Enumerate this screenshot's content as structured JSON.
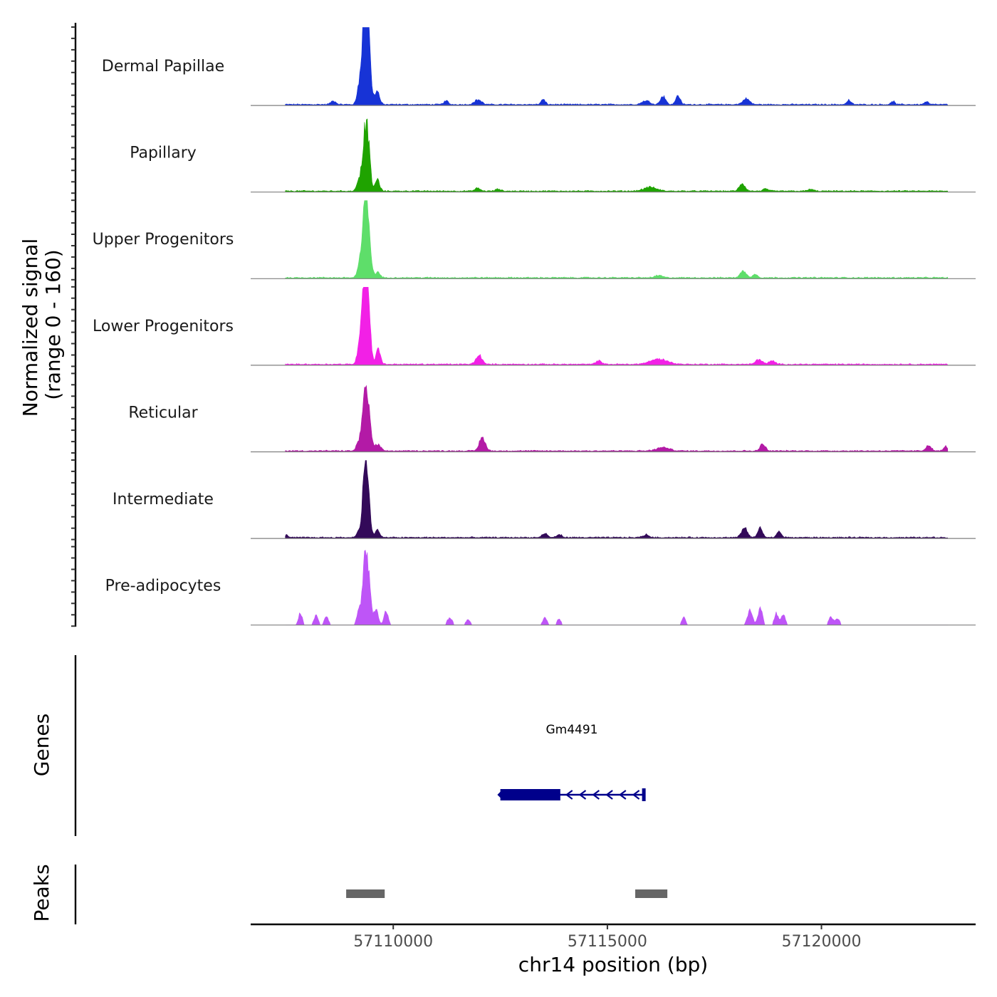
{
  "chart_data": {
    "type": "area",
    "title": "",
    "xlabel": "chr14 position (bp)",
    "ylabel_line1": "Normalized signal",
    "ylabel_line2": "(range 0 - 160)",
    "y_range": [
      0,
      160
    ],
    "x_range": [
      57106670,
      57123600
    ],
    "x_ticks": [
      57110000,
      57115000,
      57120000
    ],
    "x_tick_labels": [
      "57110000",
      "57115000",
      "57120000"
    ],
    "data_start": 57107480,
    "data_end": 57122950,
    "tracks": [
      {
        "name": "Dermal Papillae",
        "color": "#1733d6",
        "peaks": [
          {
            "pos": 57109330,
            "height": 160,
            "width": 70
          },
          {
            "pos": 57109400,
            "height": 128,
            "width": 60
          },
          {
            "pos": 57109200,
            "height": 25,
            "width": 50
          },
          {
            "pos": 57109620,
            "height": 30,
            "width": 55
          },
          {
            "pos": 57108600,
            "height": 7,
            "width": 60
          },
          {
            "pos": 57111230,
            "height": 8,
            "width": 50
          },
          {
            "pos": 57111980,
            "height": 10,
            "width": 80
          },
          {
            "pos": 57113500,
            "height": 10,
            "width": 50
          },
          {
            "pos": 57115900,
            "height": 8,
            "width": 90
          },
          {
            "pos": 57116300,
            "height": 18,
            "width": 60
          },
          {
            "pos": 57116650,
            "height": 20,
            "width": 50
          },
          {
            "pos": 57118240,
            "height": 12,
            "width": 80
          },
          {
            "pos": 57120640,
            "height": 9,
            "width": 50
          },
          {
            "pos": 57121670,
            "height": 7,
            "width": 40
          },
          {
            "pos": 57122450,
            "height": 6,
            "width": 50
          }
        ]
      },
      {
        "name": "Papillary",
        "color": "#1fa300",
        "peaks": [
          {
            "pos": 57109330,
            "height": 100,
            "width": 60
          },
          {
            "pos": 57109410,
            "height": 82,
            "width": 55
          },
          {
            "pos": 57109190,
            "height": 20,
            "width": 50
          },
          {
            "pos": 57109630,
            "height": 25,
            "width": 50
          },
          {
            "pos": 57111970,
            "height": 6,
            "width": 60
          },
          {
            "pos": 57112450,
            "height": 4,
            "width": 60
          },
          {
            "pos": 57116000,
            "height": 8,
            "width": 150
          },
          {
            "pos": 57118150,
            "height": 14,
            "width": 70
          },
          {
            "pos": 57118700,
            "height": 5,
            "width": 60
          },
          {
            "pos": 57119750,
            "height": 4,
            "width": 60
          }
        ]
      },
      {
        "name": "Upper Progenitors",
        "color": "#5ede6a",
        "peaks": [
          {
            "pos": 57109330,
            "height": 124,
            "width": 65
          },
          {
            "pos": 57109410,
            "height": 100,
            "width": 60
          },
          {
            "pos": 57109190,
            "height": 17,
            "width": 45
          },
          {
            "pos": 57109640,
            "height": 12,
            "width": 50
          },
          {
            "pos": 57118170,
            "height": 14,
            "width": 70
          },
          {
            "pos": 57118450,
            "height": 7,
            "width": 60
          },
          {
            "pos": 57116200,
            "height": 5,
            "width": 80
          }
        ]
      },
      {
        "name": "Lower Progenitors",
        "color": "#f220e6",
        "peaks": [
          {
            "pos": 57109320,
            "height": 160,
            "width": 65
          },
          {
            "pos": 57109400,
            "height": 125,
            "width": 60
          },
          {
            "pos": 57109190,
            "height": 22,
            "width": 50
          },
          {
            "pos": 57109650,
            "height": 33,
            "width": 50
          },
          {
            "pos": 57112000,
            "height": 20,
            "width": 70
          },
          {
            "pos": 57114800,
            "height": 8,
            "width": 60
          },
          {
            "pos": 57116200,
            "height": 11,
            "width": 200
          },
          {
            "pos": 57118540,
            "height": 10,
            "width": 80
          },
          {
            "pos": 57118850,
            "height": 7,
            "width": 70
          }
        ]
      },
      {
        "name": "Reticular",
        "color": "#b31aa6",
        "peaks": [
          {
            "pos": 57109330,
            "height": 100,
            "width": 60
          },
          {
            "pos": 57109420,
            "height": 75,
            "width": 60
          },
          {
            "pos": 57109190,
            "height": 18,
            "width": 50
          },
          {
            "pos": 57109640,
            "height": 14,
            "width": 60
          },
          {
            "pos": 57112080,
            "height": 28,
            "width": 70
          },
          {
            "pos": 57116300,
            "height": 7,
            "width": 150
          },
          {
            "pos": 57118630,
            "height": 15,
            "width": 60
          },
          {
            "pos": 57122500,
            "height": 12,
            "width": 60
          },
          {
            "pos": 57122900,
            "height": 9,
            "width": 50
          }
        ]
      },
      {
        "name": "Intermediate",
        "color": "#330a59",
        "peaks": [
          {
            "pos": 57109330,
            "height": 115,
            "width": 55
          },
          {
            "pos": 57109400,
            "height": 90,
            "width": 55
          },
          {
            "pos": 57109190,
            "height": 12,
            "width": 50
          },
          {
            "pos": 57109630,
            "height": 18,
            "width": 50
          },
          {
            "pos": 57113540,
            "height": 8,
            "width": 60
          },
          {
            "pos": 57113880,
            "height": 6,
            "width": 60
          },
          {
            "pos": 57115900,
            "height": 6,
            "width": 70
          },
          {
            "pos": 57118200,
            "height": 20,
            "width": 70
          },
          {
            "pos": 57118570,
            "height": 20,
            "width": 55
          },
          {
            "pos": 57119010,
            "height": 13,
            "width": 55
          },
          {
            "pos": 57107520,
            "height": 6,
            "width": 30
          }
        ]
      },
      {
        "name": "Pre-adipocytes",
        "color": "#be55f7",
        "sparse": true,
        "peaks": [
          {
            "pos": 57109330,
            "height": 135,
            "width": 50
          },
          {
            "pos": 57109420,
            "height": 100,
            "width": 55
          },
          {
            "pos": 57109200,
            "height": 30,
            "width": 50
          },
          {
            "pos": 57109600,
            "height": 35,
            "width": 50
          },
          {
            "pos": 57109830,
            "height": 28,
            "width": 50
          },
          {
            "pos": 57107830,
            "height": 25,
            "width": 45
          },
          {
            "pos": 57108200,
            "height": 20,
            "width": 50
          },
          {
            "pos": 57108440,
            "height": 20,
            "width": 45
          },
          {
            "pos": 57111320,
            "height": 15,
            "width": 60
          },
          {
            "pos": 57111750,
            "height": 12,
            "width": 50
          },
          {
            "pos": 57113540,
            "height": 15,
            "width": 50
          },
          {
            "pos": 57113870,
            "height": 12,
            "width": 50
          },
          {
            "pos": 57116780,
            "height": 17,
            "width": 45
          },
          {
            "pos": 57118330,
            "height": 30,
            "width": 60
          },
          {
            "pos": 57118570,
            "height": 38,
            "width": 50
          },
          {
            "pos": 57118950,
            "height": 25,
            "width": 50
          },
          {
            "pos": 57119110,
            "height": 22,
            "width": 45
          },
          {
            "pos": 57120220,
            "height": 18,
            "width": 50
          },
          {
            "pos": 57120380,
            "height": 14,
            "width": 50
          }
        ]
      }
    ],
    "genes_label": "Genes",
    "genes": [
      {
        "name": "Gm4491",
        "color": "#00008b",
        "start": 57112480,
        "end": 57115860,
        "thick_start": 57112500,
        "thick_end": 57113900,
        "strand": "-"
      }
    ],
    "peaks_label": "Peaks",
    "peak_regions": [
      {
        "start": 57108900,
        "end": 57109800
      },
      {
        "start": 57115650,
        "end": 57116400
      }
    ],
    "peak_color": "#666666"
  }
}
